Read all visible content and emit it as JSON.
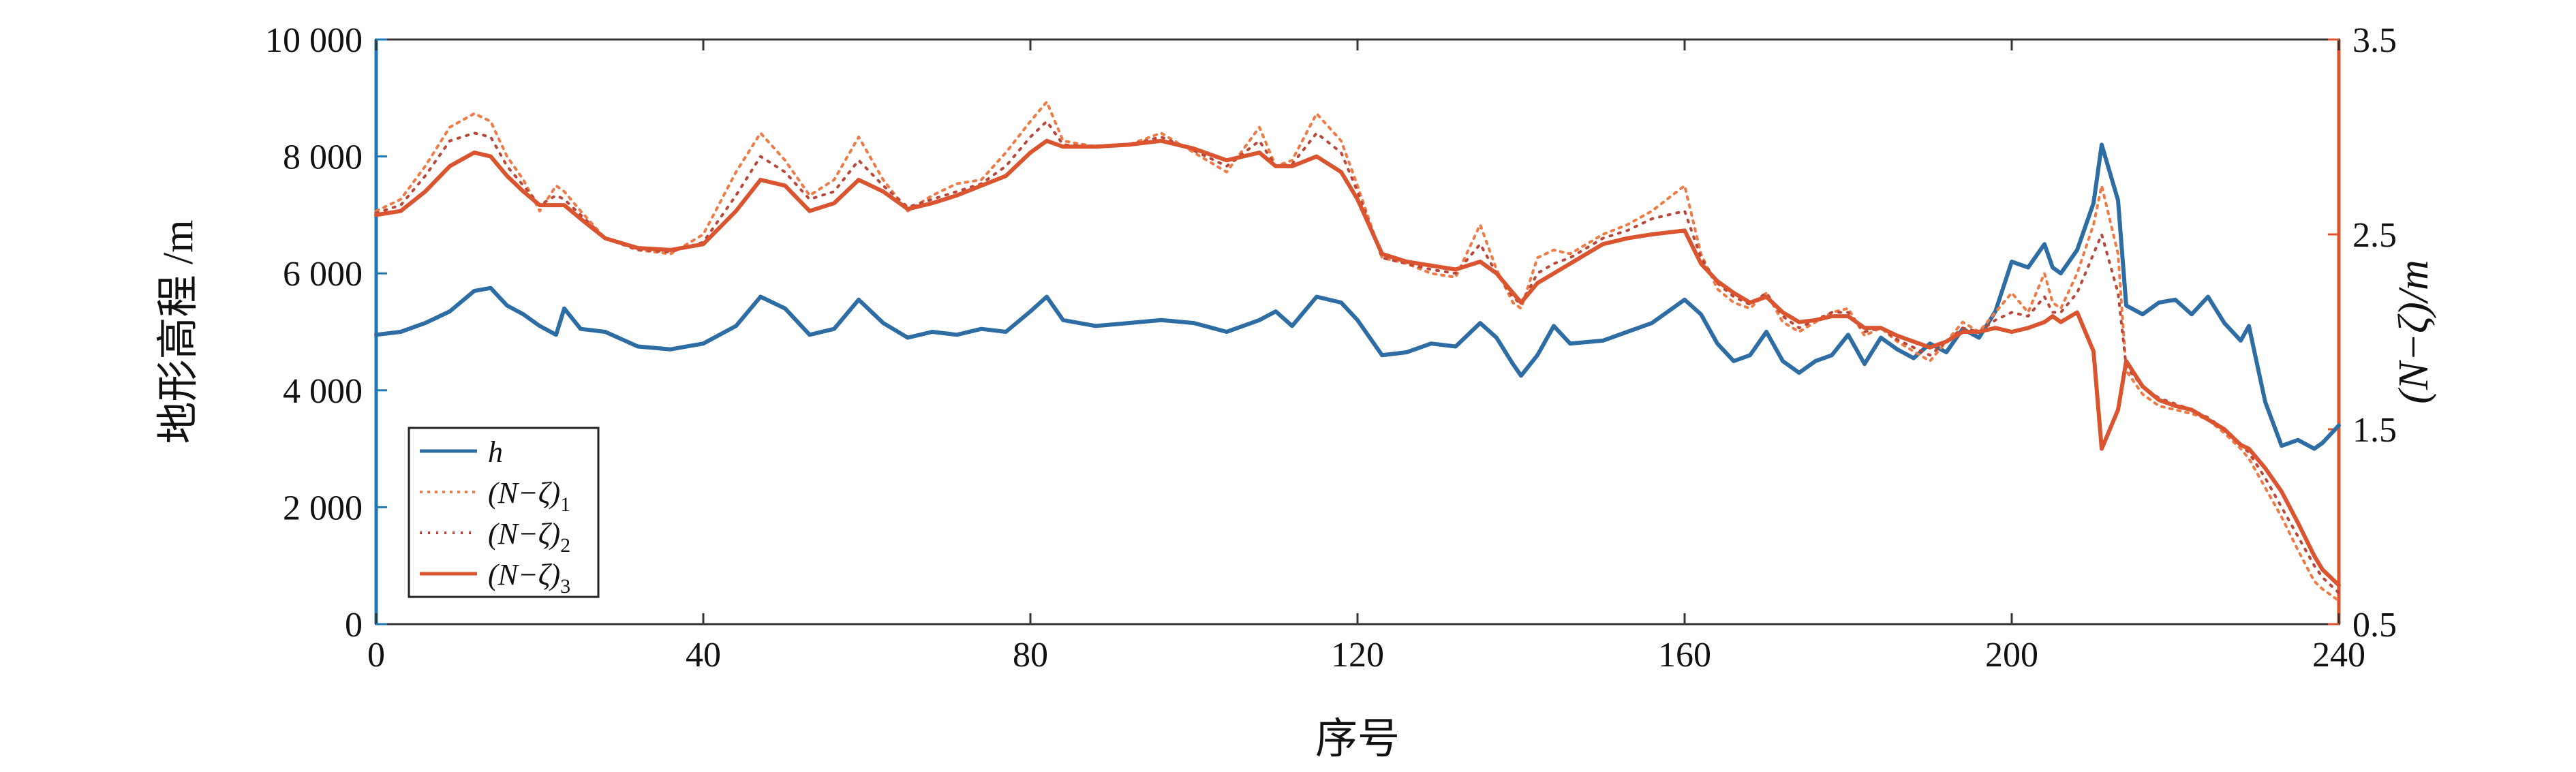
{
  "chart_data": {
    "type": "line",
    "xlabel": "序号",
    "ylabel_left": "地形高程 /m",
    "ylabel_right": "(N−ζ)/m",
    "xlim": [
      0,
      240
    ],
    "ylim_left": [
      0,
      10000
    ],
    "ylim_right": [
      0.5,
      3.5
    ],
    "x_ticks": [
      "0",
      "40",
      "80",
      "120",
      "160",
      "200",
      "240"
    ],
    "left_ticks": [
      {
        "value": 0,
        "label": "0"
      },
      {
        "value": 2000,
        "label": "2 000"
      },
      {
        "value": 4000,
        "label": "4 000"
      },
      {
        "value": 6000,
        "label": "6 000"
      },
      {
        "value": 8000,
        "label": "8 000"
      },
      {
        "value": 10000,
        "label": "10 000"
      }
    ],
    "right_ticks": [
      {
        "value": 0.5,
        "label": "0.5"
      },
      {
        "value": 1.5,
        "label": "1.5"
      },
      {
        "value": 2.5,
        "label": "2.5"
      },
      {
        "value": 3.5,
        "label": "3.5"
      }
    ],
    "grid": false,
    "legend_position": "bottom-left",
    "colors": {
      "h": "#2E6DA4",
      "n1": "#EE7A45",
      "n2": "#B8473A",
      "n3": "#D9542F",
      "left_axis": "#1F78B4",
      "right_axis": "#D9542F"
    },
    "series": [
      {
        "name": "h",
        "axis": "left",
        "style": "solid",
        "x": [
          0,
          3,
          6,
          9,
          12,
          14,
          16,
          18,
          20,
          22,
          23,
          25,
          28,
          32,
          36,
          40,
          44,
          47,
          50,
          53,
          56,
          59,
          62,
          65,
          68,
          71,
          74,
          77,
          80,
          82,
          84,
          88,
          92,
          96,
          100,
          104,
          108,
          110,
          112,
          115,
          118,
          120,
          123,
          126,
          129,
          132,
          135,
          137,
          139,
          140,
          142,
          144,
          146,
          150,
          153,
          156,
          160,
          162,
          164,
          166,
          168,
          170,
          172,
          174,
          176,
          178,
          180,
          182,
          184,
          186,
          188,
          190,
          192,
          194,
          196,
          198,
          200,
          202,
          204,
          205,
          206,
          208,
          210,
          211,
          213,
          214,
          216,
          218,
          220,
          222,
          224,
          226,
          228,
          229,
          231,
          233,
          235,
          237,
          238,
          240
        ],
        "values": [
          4950,
          5000,
          5150,
          5350,
          5700,
          5750,
          5450,
          5300,
          5100,
          4950,
          5400,
          5050,
          5000,
          4750,
          4700,
          4800,
          5100,
          5600,
          5400,
          4950,
          5050,
          5550,
          5150,
          4900,
          5000,
          4950,
          5050,
          5000,
          5350,
          5600,
          5200,
          5100,
          5150,
          5200,
          5150,
          5000,
          5200,
          5350,
          5100,
          5600,
          5500,
          5200,
          4600,
          4650,
          4800,
          4750,
          5150,
          4900,
          4450,
          4250,
          4600,
          5100,
          4800,
          4850,
          5000,
          5150,
          5550,
          5300,
          4800,
          4500,
          4600,
          5000,
          4500,
          4300,
          4500,
          4600,
          4950,
          4450,
          4900,
          4700,
          4550,
          4800,
          4650,
          5050,
          4900,
          5350,
          6200,
          6100,
          6500,
          6100,
          6000,
          6400,
          7200,
          8200,
          7250,
          5450,
          5300,
          5500,
          5550,
          5300,
          5600,
          5150,
          4850,
          5100,
          3800,
          3050,
          3150,
          3000,
          3100,
          3400
        ]
      },
      {
        "name": "(N−ζ)1",
        "axis": "right",
        "style": "dotted",
        "x": [
          0,
          3,
          6,
          9,
          12,
          14,
          16,
          18,
          20,
          22,
          23,
          25,
          28,
          32,
          36,
          40,
          44,
          47,
          50,
          53,
          56,
          59,
          62,
          65,
          68,
          71,
          74,
          77,
          80,
          82,
          84,
          88,
          92,
          96,
          100,
          104,
          108,
          110,
          112,
          115,
          118,
          120,
          123,
          126,
          129,
          132,
          135,
          137,
          139,
          140,
          142,
          144,
          146,
          150,
          153,
          156,
          160,
          162,
          164,
          166,
          168,
          170,
          172,
          174,
          176,
          178,
          180,
          182,
          184,
          186,
          188,
          190,
          192,
          194,
          196,
          198,
          200,
          202,
          204,
          205,
          206,
          208,
          210,
          211,
          213,
          214,
          216,
          218,
          220,
          222,
          224,
          226,
          228,
          229,
          231,
          233,
          235,
          237,
          238,
          240
        ],
        "values": [
          2.62,
          2.68,
          2.85,
          3.05,
          3.12,
          3.08,
          2.9,
          2.78,
          2.62,
          2.75,
          2.72,
          2.62,
          2.48,
          2.42,
          2.4,
          2.5,
          2.82,
          3.02,
          2.88,
          2.7,
          2.78,
          3.0,
          2.78,
          2.62,
          2.7,
          2.76,
          2.78,
          2.92,
          3.08,
          3.18,
          2.98,
          2.95,
          2.96,
          3.02,
          2.92,
          2.82,
          3.05,
          2.85,
          2.88,
          3.12,
          2.98,
          2.75,
          2.38,
          2.35,
          2.3,
          2.28,
          2.55,
          2.32,
          2.15,
          2.12,
          2.38,
          2.42,
          2.4,
          2.5,
          2.55,
          2.62,
          2.75,
          2.4,
          2.22,
          2.15,
          2.12,
          2.2,
          2.05,
          2.0,
          2.05,
          2.1,
          2.12,
          1.98,
          2.02,
          1.95,
          1.9,
          1.85,
          1.95,
          2.05,
          2.0,
          2.1,
          2.2,
          2.1,
          2.3,
          2.15,
          2.12,
          2.3,
          2.55,
          2.75,
          2.4,
          1.8,
          1.68,
          1.62,
          1.6,
          1.58,
          1.55,
          1.48,
          1.4,
          1.35,
          1.2,
          1.05,
          0.88,
          0.72,
          0.68,
          0.62
        ]
      },
      {
        "name": "(N−ζ)2",
        "axis": "right",
        "style": "dotted",
        "x": [
          0,
          3,
          6,
          9,
          12,
          14,
          16,
          18,
          20,
          22,
          23,
          25,
          28,
          32,
          36,
          40,
          44,
          47,
          50,
          53,
          56,
          59,
          62,
          65,
          68,
          71,
          74,
          77,
          80,
          82,
          84,
          88,
          92,
          96,
          100,
          104,
          108,
          110,
          112,
          115,
          118,
          120,
          123,
          126,
          129,
          132,
          135,
          137,
          139,
          140,
          142,
          144,
          146,
          150,
          153,
          156,
          160,
          162,
          164,
          166,
          168,
          170,
          172,
          174,
          176,
          178,
          180,
          182,
          184,
          186,
          188,
          190,
          192,
          194,
          196,
          198,
          200,
          202,
          204,
          205,
          206,
          208,
          210,
          211,
          213,
          214,
          216,
          218,
          220,
          222,
          224,
          226,
          228,
          229,
          231,
          233,
          235,
          237,
          238,
          240
        ],
        "values": [
          2.61,
          2.65,
          2.8,
          2.98,
          3.02,
          3.0,
          2.85,
          2.75,
          2.65,
          2.7,
          2.68,
          2.6,
          2.48,
          2.42,
          2.41,
          2.46,
          2.7,
          2.9,
          2.82,
          2.68,
          2.72,
          2.88,
          2.75,
          2.64,
          2.68,
          2.72,
          2.76,
          2.85,
          3.0,
          3.08,
          2.96,
          2.95,
          2.96,
          3.0,
          2.93,
          2.85,
          2.98,
          2.85,
          2.86,
          3.02,
          2.92,
          2.72,
          2.38,
          2.35,
          2.32,
          2.3,
          2.45,
          2.3,
          2.18,
          2.14,
          2.3,
          2.35,
          2.38,
          2.48,
          2.52,
          2.58,
          2.62,
          2.38,
          2.25,
          2.18,
          2.14,
          2.2,
          2.08,
          2.02,
          2.06,
          2.1,
          2.1,
          2.0,
          2.02,
          1.96,
          1.92,
          1.88,
          1.95,
          2.02,
          2.0,
          2.06,
          2.1,
          2.08,
          2.18,
          2.1,
          2.1,
          2.2,
          2.4,
          2.5,
          2.2,
          1.82,
          1.72,
          1.66,
          1.63,
          1.6,
          1.56,
          1.5,
          1.42,
          1.38,
          1.25,
          1.1,
          0.95,
          0.8,
          0.74,
          0.66
        ]
      },
      {
        "name": "(N−ζ)3",
        "axis": "right",
        "style": "solid",
        "x": [
          0,
          3,
          6,
          9,
          12,
          14,
          16,
          18,
          20,
          22,
          23,
          25,
          28,
          32,
          36,
          40,
          44,
          47,
          50,
          53,
          56,
          59,
          62,
          65,
          68,
          71,
          74,
          77,
          80,
          82,
          84,
          88,
          92,
          96,
          100,
          104,
          108,
          110,
          112,
          115,
          118,
          120,
          123,
          126,
          129,
          132,
          135,
          137,
          139,
          140,
          142,
          144,
          146,
          150,
          153,
          156,
          160,
          162,
          164,
          166,
          168,
          170,
          172,
          174,
          176,
          178,
          180,
          182,
          184,
          186,
          188,
          190,
          192,
          194,
          196,
          198,
          200,
          202,
          204,
          205,
          206,
          208,
          210,
          211,
          213,
          214,
          216,
          218,
          220,
          222,
          224,
          226,
          228,
          229,
          231,
          233,
          235,
          237,
          238,
          240
        ],
        "values": [
          2.6,
          2.62,
          2.72,
          2.85,
          2.92,
          2.9,
          2.8,
          2.72,
          2.65,
          2.65,
          2.65,
          2.58,
          2.48,
          2.43,
          2.42,
          2.45,
          2.62,
          2.78,
          2.75,
          2.62,
          2.66,
          2.78,
          2.72,
          2.63,
          2.66,
          2.7,
          2.75,
          2.8,
          2.92,
          2.98,
          2.95,
          2.95,
          2.96,
          2.98,
          2.94,
          2.88,
          2.92,
          2.85,
          2.85,
          2.9,
          2.82,
          2.68,
          2.4,
          2.36,
          2.34,
          2.32,
          2.36,
          2.3,
          2.2,
          2.15,
          2.25,
          2.3,
          2.35,
          2.45,
          2.48,
          2.5,
          2.52,
          2.35,
          2.26,
          2.2,
          2.15,
          2.18,
          2.1,
          2.05,
          2.06,
          2.08,
          2.08,
          2.02,
          2.02,
          1.98,
          1.95,
          1.92,
          1.95,
          2.0,
          2.0,
          2.02,
          2.0,
          2.02,
          2.05,
          2.08,
          2.05,
          2.1,
          1.9,
          1.4,
          1.6,
          1.85,
          1.72,
          1.65,
          1.62,
          1.6,
          1.55,
          1.5,
          1.42,
          1.4,
          1.3,
          1.18,
          1.02,
          0.85,
          0.78,
          0.7
        ]
      }
    ],
    "legend": [
      {
        "key": "h",
        "label": "h",
        "sub": ""
      },
      {
        "key": "n1",
        "label": "(N−ζ)",
        "sub": "1"
      },
      {
        "key": "n2",
        "label": "(N−ζ)",
        "sub": "2"
      },
      {
        "key": "n3",
        "label": "(N−ζ)",
        "sub": "3"
      }
    ]
  }
}
